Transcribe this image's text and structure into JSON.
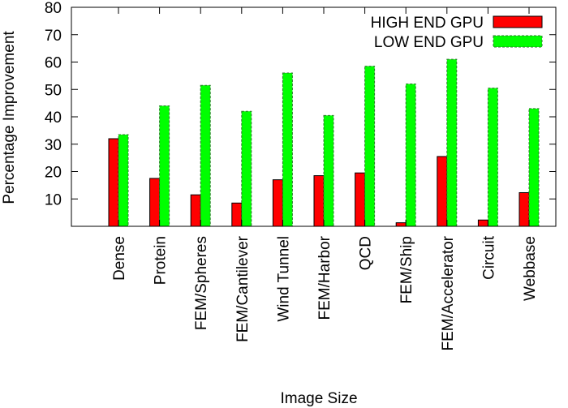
{
  "chart_data": {
    "type": "bar",
    "xlabel": "Image Size",
    "ylabel": "Percentage Improvement",
    "ylim": [
      0,
      80
    ],
    "yticks": [
      10,
      20,
      30,
      40,
      50,
      60,
      70,
      80
    ],
    "grid": false,
    "legend_position": "top-right",
    "categories": [
      "Dense",
      "Protein",
      "FEM/Spheres",
      "FEM/Cantilever",
      "Wind Tunnel",
      "FEM/Harbor",
      "QCD",
      "FEM/Ship",
      "FEM/Accelerator",
      "Circuit",
      "Webbase"
    ],
    "series": [
      {
        "name": "HIGH END GPU",
        "color": "#ff0000",
        "values": [
          32,
          17.5,
          11.5,
          8.5,
          17,
          18.5,
          19.5,
          1.3,
          25.5,
          2.3,
          12.3
        ]
      },
      {
        "name": "LOW END GPU",
        "color": "#00ff00",
        "values": [
          33.5,
          44,
          51.5,
          42,
          56,
          40.5,
          58.5,
          52,
          61,
          50.5,
          43
        ]
      }
    ]
  }
}
